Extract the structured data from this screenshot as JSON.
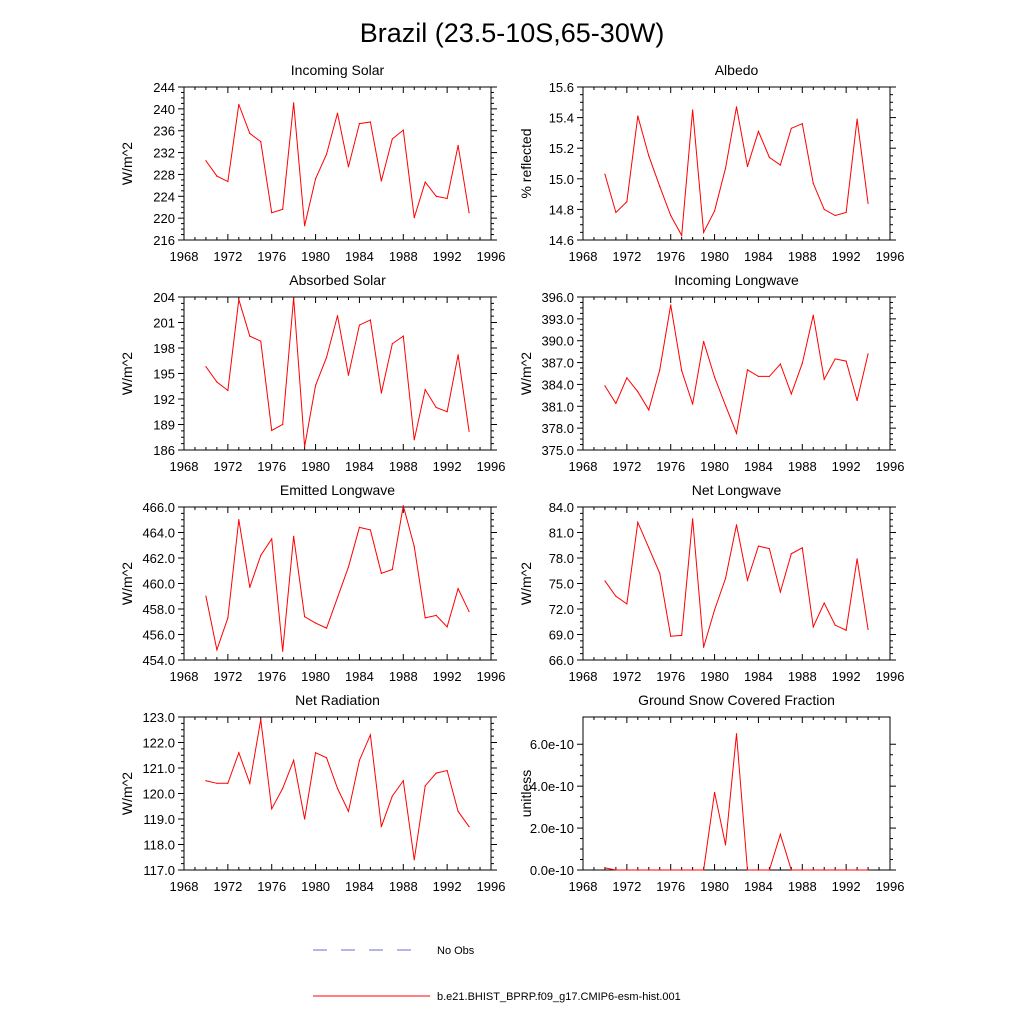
{
  "figure": {
    "title": "Brazil (23.5-10S,65-30W)",
    "legend": [
      {
        "label": "No Obs",
        "color": "#6b6bd6",
        "dash": "dashed"
      },
      {
        "label": "b.e21.BHIST_BPRP.f09_g17.CMIP6-esm-hist.001",
        "color": "#ff0000",
        "dash": "solid"
      }
    ],
    "line_color": "#ff0000"
  },
  "chart_data": [
    {
      "type": "line",
      "title": "Incoming Solar",
      "ylabel": "W/m^2",
      "xlabel": "",
      "xlim": [
        1968,
        1996
      ],
      "ylim": [
        216,
        244
      ],
      "xticks": [
        1968,
        1972,
        1976,
        1980,
        1984,
        1988,
        1992,
        1996
      ],
      "yticks": [
        "216",
        "220",
        "224",
        "228",
        "232",
        "236",
        "240",
        "244"
      ],
      "x": [
        1970,
        1971,
        1972,
        1973,
        1974,
        1975,
        1976,
        1977,
        1978,
        1979,
        1980,
        1981,
        1982,
        1983,
        1984,
        1985,
        1986,
        1987,
        1988,
        1989,
        1990,
        1991,
        1992,
        1993,
        1994
      ],
      "series": [
        {
          "name": "b.e21.BHIST_BPRP.f09_g17.CMIP6-esm-hist.001",
          "values": [
            230.5,
            227.7,
            226.7,
            240.8,
            235.5,
            234.0,
            221.0,
            221.6,
            241.1,
            218.6,
            227.2,
            231.7,
            239.2,
            229.4,
            237.3,
            237.6,
            226.8,
            234.5,
            236.1,
            220.1,
            226.6,
            224.0,
            223.6,
            233.3,
            221.0
          ]
        }
      ]
    },
    {
      "type": "line",
      "title": "Albedo",
      "ylabel": "% reflected",
      "xlabel": "",
      "xlim": [
        1968,
        1996
      ],
      "ylim": [
        14.6,
        15.6
      ],
      "xticks": [
        1968,
        1972,
        1976,
        1980,
        1984,
        1988,
        1992,
        1996
      ],
      "yticks": [
        "14.6",
        "14.8",
        "15.0",
        "15.2",
        "15.4",
        "15.6"
      ],
      "x": [
        1970,
        1971,
        1972,
        1973,
        1974,
        1975,
        1976,
        1977,
        1978,
        1979,
        1980,
        1981,
        1982,
        1983,
        1984,
        1985,
        1986,
        1987,
        1988,
        1989,
        1990,
        1991,
        1992,
        1993,
        1994
      ],
      "series": [
        {
          "name": "b.e21.BHIST_BPRP.f09_g17.CMIP6-esm-hist.001",
          "values": [
            15.03,
            14.78,
            14.85,
            15.41,
            15.15,
            14.95,
            14.76,
            14.63,
            15.45,
            14.65,
            14.79,
            15.07,
            15.47,
            15.08,
            15.31,
            15.14,
            15.09,
            15.33,
            15.36,
            14.97,
            14.8,
            14.76,
            14.78,
            15.39,
            14.84
          ]
        }
      ]
    },
    {
      "type": "line",
      "title": "Absorbed Solar",
      "ylabel": "W/m^2",
      "xlabel": "",
      "xlim": [
        1968,
        1996
      ],
      "ylim": [
        186,
        204
      ],
      "xticks": [
        1968,
        1972,
        1976,
        1980,
        1984,
        1988,
        1992,
        1996
      ],
      "yticks": [
        "186",
        "189",
        "192",
        "195",
        "198",
        "201",
        "204"
      ],
      "x": [
        1970,
        1971,
        1972,
        1973,
        1974,
        1975,
        1976,
        1977,
        1978,
        1979,
        1980,
        1981,
        1982,
        1983,
        1984,
        1985,
        1986,
        1987,
        1988,
        1989,
        1990,
        1991,
        1992,
        1993,
        1994
      ],
      "series": [
        {
          "name": "b.e21.BHIST_BPRP.f09_g17.CMIP6-esm-hist.001",
          "values": [
            195.8,
            194.0,
            193.0,
            203.7,
            199.4,
            198.8,
            188.3,
            189.0,
            203.9,
            186.4,
            193.6,
            196.9,
            201.8,
            194.8,
            200.7,
            201.3,
            192.7,
            198.5,
            199.4,
            187.2,
            193.1,
            191.0,
            190.5,
            197.2,
            188.2
          ]
        }
      ]
    },
    {
      "type": "line",
      "title": "Incoming Longwave",
      "ylabel": "W/m^2",
      "xlabel": "",
      "xlim": [
        1968,
        1996
      ],
      "ylim": [
        375.0,
        396.0
      ],
      "xticks": [
        1968,
        1972,
        1976,
        1980,
        1984,
        1988,
        1992,
        1996
      ],
      "yticks": [
        "375.0",
        "378.0",
        "381.0",
        "384.0",
        "387.0",
        "390.0",
        "393.0",
        "396.0"
      ],
      "x": [
        1970,
        1971,
        1972,
        1973,
        1974,
        1975,
        1976,
        1977,
        1978,
        1979,
        1980,
        1981,
        1982,
        1983,
        1984,
        1985,
        1986,
        1987,
        1988,
        1989,
        1990,
        1991,
        1992,
        1993,
        1994
      ],
      "series": [
        {
          "name": "b.e21.BHIST_BPRP.f09_g17.CMIP6-esm-hist.001",
          "values": [
            383.8,
            381.4,
            384.9,
            383.0,
            380.5,
            386.0,
            394.9,
            385.9,
            381.3,
            389.9,
            385.0,
            381.1,
            377.3,
            386.0,
            385.1,
            385.1,
            386.8,
            382.7,
            386.9,
            393.5,
            384.7,
            387.5,
            387.2,
            381.8,
            388.2
          ]
        }
      ]
    },
    {
      "type": "line",
      "title": "Emitted Longwave",
      "ylabel": "W/m^2",
      "xlabel": "",
      "xlim": [
        1968,
        1996
      ],
      "ylim": [
        454.0,
        466.0
      ],
      "xticks": [
        1968,
        1972,
        1976,
        1980,
        1984,
        1988,
        1992,
        1996
      ],
      "yticks": [
        "454.0",
        "456.0",
        "458.0",
        "460.0",
        "462.0",
        "464.0",
        "466.0"
      ],
      "x": [
        1970,
        1971,
        1972,
        1973,
        1974,
        1975,
        1976,
        1977,
        1978,
        1979,
        1980,
        1981,
        1982,
        1983,
        1984,
        1985,
        1986,
        1987,
        1988,
        1989,
        1990,
        1991,
        1992,
        1993,
        1994
      ],
      "series": [
        {
          "name": "b.e21.BHIST_BPRP.f09_g17.CMIP6-esm-hist.001",
          "values": [
            459.0,
            454.8,
            457.3,
            465.0,
            459.7,
            462.2,
            463.5,
            454.7,
            463.7,
            457.4,
            456.9,
            456.5,
            458.9,
            461.3,
            464.4,
            464.2,
            460.8,
            461.1,
            466.1,
            462.9,
            457.3,
            457.5,
            456.6,
            459.6,
            457.8
          ]
        }
      ]
    },
    {
      "type": "line",
      "title": "Net Longwave",
      "ylabel": "W/m^2",
      "xlabel": "",
      "xlim": [
        1968,
        1996
      ],
      "ylim": [
        66.0,
        84.0
      ],
      "xticks": [
        1968,
        1972,
        1976,
        1980,
        1984,
        1988,
        1992,
        1996
      ],
      "yticks": [
        "66.0",
        "69.0",
        "72.0",
        "75.0",
        "78.0",
        "81.0",
        "84.0"
      ],
      "x": [
        1970,
        1971,
        1972,
        1973,
        1974,
        1975,
        1976,
        1977,
        1978,
        1979,
        1980,
        1981,
        1982,
        1983,
        1984,
        1985,
        1986,
        1987,
        1988,
        1989,
        1990,
        1991,
        1992,
        1993,
        1994
      ],
      "series": [
        {
          "name": "b.e21.BHIST_BPRP.f09_g17.CMIP6-esm-hist.001",
          "values": [
            75.3,
            73.5,
            72.6,
            82.2,
            79.2,
            76.2,
            68.8,
            68.9,
            82.6,
            67.5,
            71.9,
            75.6,
            81.9,
            75.4,
            79.4,
            79.1,
            74.0,
            78.5,
            79.2,
            69.9,
            72.7,
            70.1,
            69.5,
            77.9,
            69.6
          ]
        }
      ]
    },
    {
      "type": "line",
      "title": "Net Radiation",
      "ylabel": "W/m^2",
      "xlabel": "",
      "xlim": [
        1968,
        1996
      ],
      "ylim": [
        117.0,
        123.0
      ],
      "xticks": [
        1968,
        1972,
        1976,
        1980,
        1984,
        1988,
        1992,
        1996
      ],
      "yticks": [
        "117.0",
        "118.0",
        "119.0",
        "120.0",
        "121.0",
        "122.0",
        "123.0"
      ],
      "x": [
        1970,
        1971,
        1972,
        1973,
        1974,
        1975,
        1976,
        1977,
        1978,
        1979,
        1980,
        1981,
        1982,
        1983,
        1984,
        1985,
        1986,
        1987,
        1988,
        1989,
        1990,
        1991,
        1992,
        1993,
        1994
      ],
      "series": [
        {
          "name": "b.e21.BHIST_BPRP.f09_g17.CMIP6-esm-hist.001",
          "values": [
            120.5,
            120.4,
            120.4,
            121.6,
            120.4,
            122.9,
            119.4,
            120.2,
            121.3,
            119.0,
            121.6,
            121.4,
            120.2,
            119.3,
            121.3,
            122.3,
            118.7,
            119.9,
            120.5,
            117.4,
            120.3,
            120.8,
            120.9,
            119.3,
            118.7
          ]
        }
      ]
    },
    {
      "type": "line",
      "title": "Ground Snow Covered Fraction",
      "ylabel": "unitless",
      "xlabel": "",
      "xlim": [
        1968,
        1996
      ],
      "ylim": [
        0,
        7.3e-10
      ],
      "xticks": [
        1968,
        1972,
        1976,
        1980,
        1984,
        1988,
        1992,
        1996
      ],
      "yticks": [
        "0.0e-10",
        "2.0e-10",
        "4.0e-10",
        "6.0e-10"
      ],
      "ytick_values": [
        0,
        2e-10,
        4e-10,
        6e-10
      ],
      "x": [
        1970,
        1971,
        1972,
        1973,
        1974,
        1975,
        1976,
        1977,
        1978,
        1979,
        1980,
        1981,
        1982,
        1983,
        1984,
        1985,
        1986,
        1987,
        1988,
        1989,
        1990,
        1991,
        1992,
        1993,
        1994
      ],
      "series": [
        {
          "name": "b.e21.BHIST_BPRP.f09_g17.CMIP6-esm-hist.001",
          "values": [
            1e-11,
            0,
            0,
            0,
            0,
            0,
            0,
            0,
            0,
            0,
            3.7e-10,
            1.2e-10,
            6.5e-10,
            0,
            0,
            0,
            1.7e-10,
            0,
            0,
            0,
            0,
            0,
            0,
            0,
            0
          ]
        }
      ]
    }
  ]
}
